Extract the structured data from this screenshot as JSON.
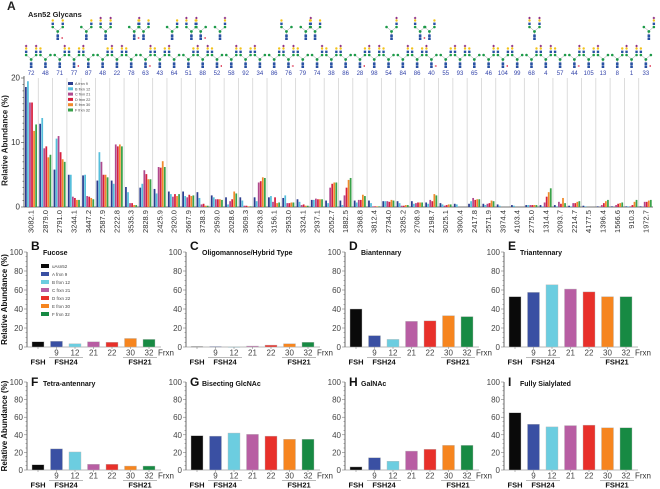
{
  "figure": {
    "panel_a_letter": "A",
    "panel_a_title": "Asn52 Glycans",
    "y_axis_title": "Relative Abundance (%)"
  },
  "chart_data": [
    {
      "type": "bar",
      "panel": "A",
      "title": "Asn52 Glycans",
      "ylabel": "Relative Abundance (%)",
      "ylim": [
        0,
        20
      ],
      "yticks": [
        0,
        10,
        20
      ],
      "legend_placement": "top-left",
      "categories": [
        "3082.1",
        "2879.0",
        "2791.0",
        "3244.1",
        "3447.2",
        "2587.9",
        "2222.8",
        "3535.3",
        "2828.9",
        "2425.9",
        "2920.0",
        "2667.9",
        "3738.3",
        "2959.0",
        "2028.6",
        "3609.3",
        "2263.8",
        "3156.1",
        "2953.0",
        "3324.1",
        "2937.1",
        "2052.7",
        "1882.5",
        "2368.8",
        "3812.4",
        "2734.0",
        "3285.2",
        "2708.9",
        "2198.7",
        "3025.1",
        "3900.4",
        "2417.8",
        "2571.9",
        "3974.4",
        "4103.4",
        "2775.0",
        "1314.4",
        "2093.7",
        "2214.7",
        "4177.5",
        "1396.4",
        "1566.6",
        "910.3",
        "1972.7"
      ],
      "glycan_ids": [
        "72",
        "48",
        "71",
        "77",
        "87",
        "48",
        "22",
        "78",
        "63",
        "43",
        "64",
        "51",
        "88",
        "52",
        "58",
        "92",
        "34",
        "86",
        "76",
        "79",
        "74",
        "38",
        "86",
        "28",
        "98",
        "54",
        "84",
        "86",
        "40",
        "55",
        "93",
        "65",
        "46",
        "104",
        "99",
        "68",
        "4",
        "57",
        "44",
        "105",
        "13",
        "8",
        "1",
        "33"
      ],
      "series": [
        {
          "name": "A frxn 9",
          "color": "#2b3d8f",
          "values": [
            18.6,
            12.9,
            5.8,
            5.0,
            4.9,
            4.1,
            4.1,
            3.1,
            3.0,
            2.8,
            2.4,
            2.4,
            2.3,
            1.8,
            1.5,
            1.5,
            1.5,
            1.5,
            1.4,
            1.2,
            1.1,
            1.0,
            1.0,
            1.0,
            1.0,
            0.9,
            0.9,
            0.9,
            0.7,
            0.6,
            0.5,
            0.5,
            0.5,
            0.4,
            0.3,
            0.3,
            0.3,
            0.3,
            0.2,
            0.2,
            0.1,
            0.1,
            0.1,
            0.1
          ]
        },
        {
          "name": "B frxn 12",
          "color": "#56bfdc",
          "values": [
            19.5,
            13.8,
            10.6,
            5.0,
            5.0,
            8.5,
            3.6,
            2.3,
            3.6,
            2.1,
            2.0,
            1.7,
            1.4,
            1.5,
            0.4,
            1.0,
            0.9,
            1.7,
            1.8,
            0.8,
            1.1,
            0.6,
            0.3,
            0.7,
            0.6,
            0.9,
            0.6,
            0.5,
            0.5,
            0.4,
            0.4,
            0.9,
            0.3,
            0.2,
            0.2,
            0.3,
            0.1,
            0.1,
            0.1,
            0.1,
            0.0,
            0.0,
            0.1,
            0.0
          ]
        },
        {
          "name": "C frxn 21",
          "color": "#b04a8e",
          "values": [
            16.2,
            9.1,
            11.0,
            1.6,
            1.7,
            7.0,
            9.7,
            0.6,
            5.7,
            6.2,
            1.6,
            1.5,
            0.4,
            1.2,
            0.9,
            0.2,
            3.8,
            0.8,
            0.6,
            0.3,
            1.3,
            3.0,
            1.8,
            1.1,
            0.1,
            0.9,
            0.2,
            0.6,
            1.1,
            0.2,
            0.0,
            1.4,
            0.5,
            0.0,
            0.0,
            0.3,
            0.7,
            0.8,
            0.6,
            0.0,
            0.3,
            0.3,
            0.1,
            0.8
          ]
        },
        {
          "name": "D frxn 22",
          "color": "#d8203f",
          "values": [
            16.2,
            9.4,
            8.5,
            1.4,
            1.6,
            5.0,
            9.4,
            0.6,
            5.1,
            6.1,
            2.0,
            1.9,
            0.5,
            1.2,
            1.2,
            0.2,
            4.0,
            1.5,
            0.6,
            0.4,
            1.2,
            3.6,
            3.0,
            1.1,
            0.1,
            0.8,
            0.2,
            0.7,
            0.9,
            0.3,
            0.0,
            1.1,
            0.6,
            0.0,
            0.0,
            0.3,
            1.6,
            0.5,
            0.6,
            0.0,
            0.6,
            0.5,
            0.3,
            0.8
          ]
        },
        {
          "name": "E frxn 30",
          "color": "#f08a2c",
          "values": [
            11.8,
            7.7,
            7.4,
            1.1,
            1.4,
            5.0,
            9.7,
            0.3,
            4.3,
            7.1,
            1.7,
            1.7,
            0.2,
            1.2,
            2.4,
            0.1,
            4.6,
            0.6,
            0.7,
            0.2,
            1.2,
            3.8,
            4.2,
            1.9,
            0.1,
            1.1,
            0.3,
            0.7,
            2.0,
            0.4,
            0.0,
            1.2,
            1.0,
            0.0,
            0.0,
            0.3,
            2.3,
            1.4,
            0.8,
            0.0,
            0.9,
            0.6,
            0.8,
            1.0
          ]
        },
        {
          "name": "F frxn 32",
          "color": "#3aa24a",
          "values": [
            12.8,
            8.1,
            7.0,
            1.1,
            1.2,
            4.6,
            9.4,
            0.3,
            4.3,
            6.2,
            2.0,
            1.8,
            0.2,
            1.1,
            2.1,
            0.1,
            4.5,
            0.7,
            0.7,
            0.2,
            1.2,
            3.8,
            4.5,
            1.7,
            0.1,
            1.0,
            0.3,
            0.7,
            1.8,
            0.4,
            0.0,
            1.2,
            0.9,
            0.0,
            0.0,
            0.3,
            2.9,
            0.6,
            0.9,
            0.0,
            1.1,
            0.7,
            1.1,
            1.1
          ]
        }
      ]
    },
    {
      "type": "bar",
      "panel": "B",
      "title": "Fucose",
      "ylabel": "Relative Abundance (%)",
      "ylim": [
        0,
        100
      ],
      "yticks": [
        0,
        20,
        40,
        60,
        80,
        100
      ],
      "xlabel": "Frxn",
      "categories": [
        "",
        "9",
        "12",
        "21",
        "22",
        "30",
        "32"
      ],
      "groups": [
        "FSH",
        "FSH24",
        "FSH21"
      ],
      "values": [
        5.5,
        6,
        3.5,
        5.5,
        5,
        9,
        8
      ],
      "legend": [
        "uAsn52",
        "A frxn 9",
        "B frxn 12",
        "C frxn 21",
        "D frxn 22",
        "E frxn 30",
        "F frxn 32"
      ]
    },
    {
      "type": "bar",
      "panel": "C",
      "title": "Oligomannose/Hybrid Type",
      "ylim": [
        0,
        100
      ],
      "yticks": [
        0,
        20,
        40,
        60,
        80,
        100
      ],
      "xlabel": "Frxn",
      "categories": [
        "",
        "9",
        "12",
        "21",
        "22",
        "30",
        "32"
      ],
      "groups": [
        "FSH",
        "FSH24",
        "FSH21"
      ],
      "values": [
        0.5,
        0.5,
        0.2,
        1,
        2,
        3.5,
        5
      ]
    },
    {
      "type": "bar",
      "panel": "D",
      "title": "Biantennary",
      "ylim": [
        0,
        100
      ],
      "yticks": [
        0,
        20,
        40,
        60,
        80,
        100
      ],
      "xlabel": "Frxn",
      "categories": [
        "",
        "9",
        "12",
        "21",
        "22",
        "30",
        "32"
      ],
      "groups": [
        "FSH",
        "FSH24",
        "FSH21"
      ],
      "values": [
        40,
        12,
        8,
        27,
        27.5,
        33,
        32
      ]
    },
    {
      "type": "bar",
      "panel": "E",
      "title": "Triantennary",
      "ylim": [
        0,
        100
      ],
      "yticks": [
        0,
        20,
        40,
        60,
        80,
        100
      ],
      "xlabel": "Frxn",
      "categories": [
        "",
        "9",
        "12",
        "21",
        "22",
        "30",
        "32"
      ],
      "groups": [
        "FSH",
        "FSH24",
        "FSH21"
      ],
      "values": [
        53,
        57.5,
        65.5,
        61,
        58,
        53,
        53
      ]
    },
    {
      "type": "bar",
      "panel": "F",
      "title": "Tetra-antennary",
      "ylabel": "Relative Abundance (%)",
      "ylim": [
        0,
        100
      ],
      "yticks": [
        0,
        20,
        40,
        60,
        80,
        100
      ],
      "xlabel": "Frxn",
      "categories": [
        "",
        "9",
        "12",
        "21",
        "22",
        "30",
        "32"
      ],
      "groups": [
        "FSH",
        "FSH24",
        "FSH21"
      ],
      "values": [
        6,
        24,
        20.5,
        6.5,
        6.5,
        4.5,
        4.5
      ]
    },
    {
      "type": "bar",
      "panel": "G",
      "title": "Bisecting GlcNAc",
      "ylim": [
        0,
        100
      ],
      "yticks": [
        0,
        20,
        40,
        60,
        80,
        100
      ],
      "xlabel": "Frxn",
      "categories": [
        "",
        "9",
        "12",
        "21",
        "22",
        "30",
        "32"
      ],
      "groups": [
        "FSH",
        "FSH24",
        "FSH21"
      ],
      "values": [
        39,
        38.5,
        42,
        40.5,
        38.5,
        35,
        35
      ]
    },
    {
      "type": "bar",
      "panel": "H",
      "title": "GalNAc",
      "ylim": [
        0,
        100
      ],
      "yticks": [
        0,
        20,
        40,
        60,
        80,
        100
      ],
      "xlabel": "Frxn",
      "categories": [
        "",
        "9",
        "12",
        "21",
        "22",
        "30",
        "32"
      ],
      "groups": [
        "FSH",
        "FSH24",
        "FSH21"
      ],
      "values": [
        3.5,
        14,
        10,
        21.5,
        23.5,
        28,
        28
      ]
    },
    {
      "type": "bar",
      "panel": "I",
      "title": "Fully Sialylated",
      "ylim": [
        0,
        100
      ],
      "yticks": [
        0,
        20,
        40,
        60,
        80,
        100
      ],
      "xlabel": "Frxn",
      "categories": [
        "",
        "9",
        "12",
        "21",
        "22",
        "30",
        "32"
      ],
      "groups": [
        "FSH",
        "FSH24",
        "FSH21"
      ],
      "values": [
        65,
        52,
        49,
        50.5,
        51,
        48,
        48
      ]
    }
  ],
  "small_bar_colors": [
    "#0a0a0a",
    "#3a50a3",
    "#6ccde0",
    "#b85ea3",
    "#e8302a",
    "#f6851f",
    "#178a43"
  ]
}
